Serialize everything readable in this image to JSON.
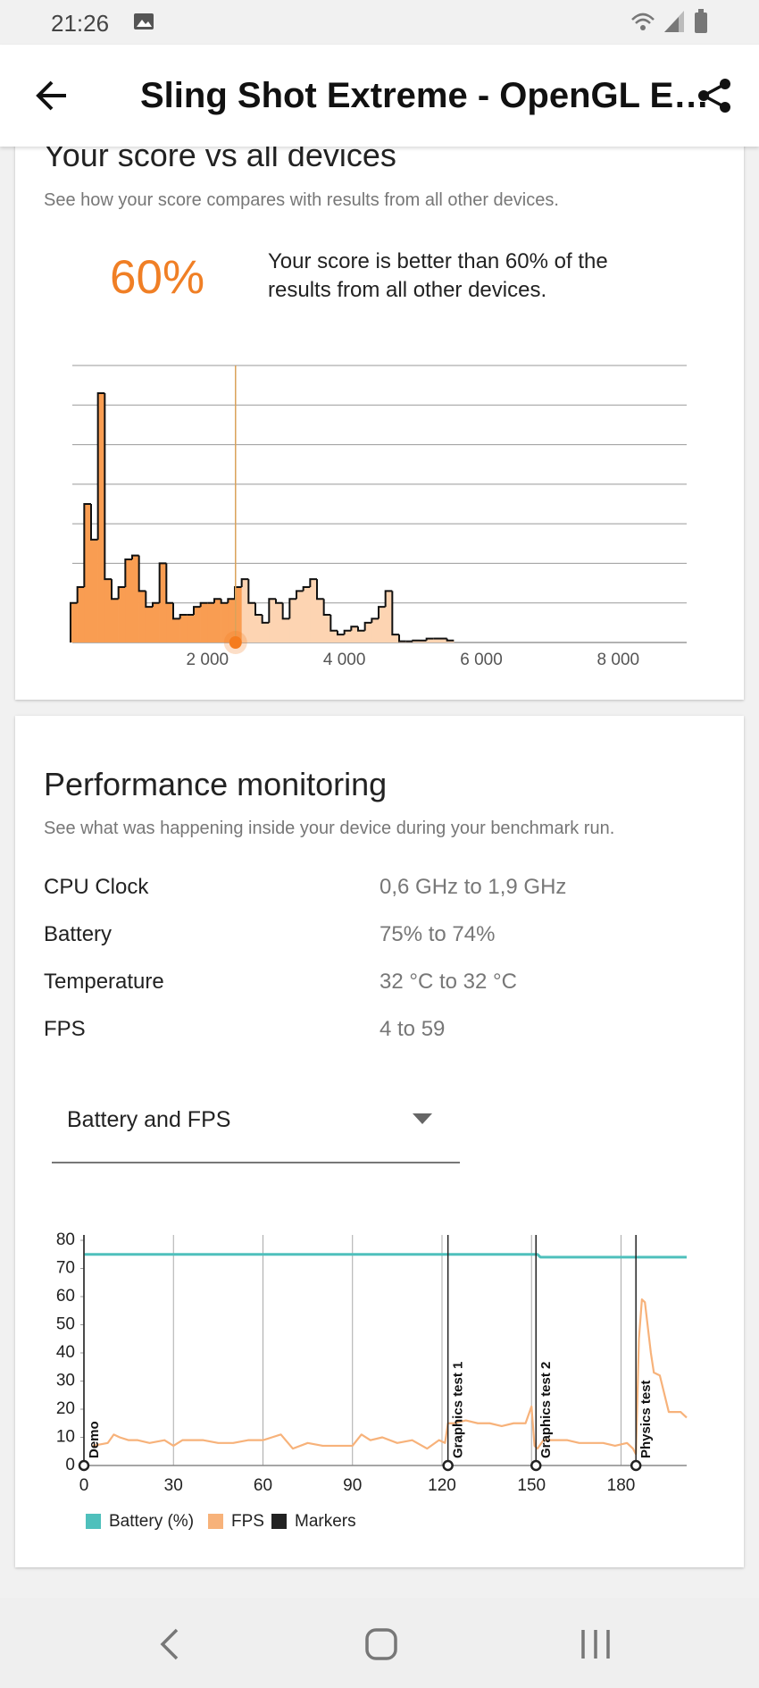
{
  "status_bar": {
    "time": "21:26"
  },
  "app_bar": {
    "title": "Sling Shot Extreme - OpenGL E…"
  },
  "score_card": {
    "heading": "Your score vs all devices",
    "subtitle": "See how your score compares with results from all other devices.",
    "percentile": "60%",
    "description": "Your score is better than 60% of the results from all other devices.",
    "histogram": {
      "type": "histogram",
      "bins": [
        0,
        100,
        200,
        300,
        400,
        500,
        600,
        700,
        800,
        900,
        1000,
        1100,
        1200,
        1300,
        1400,
        1500,
        1600,
        1700,
        1800,
        1900,
        2000,
        2100,
        2200,
        2300,
        2400,
        2500,
        2600,
        2700,
        2800,
        2900,
        3000,
        3100,
        3200,
        3300,
        3400,
        3500,
        3600,
        3700,
        3800,
        3900,
        4000,
        4100,
        4200,
        4300,
        4400,
        4500,
        4600,
        4700,
        4800,
        4900,
        5000,
        5100,
        5200,
        5300,
        5400,
        5500,
        5600
      ],
      "counts": [
        1.0,
        1.4,
        3.5,
        2.6,
        6.3,
        1.6,
        1.1,
        1.4,
        2.1,
        2.2,
        1.3,
        0.9,
        1.0,
        2.0,
        1.0,
        0.6,
        0.7,
        0.7,
        0.9,
        1.0,
        1.0,
        1.1,
        1.0,
        1.1,
        1.4,
        1.6,
        1.0,
        0.7,
        0.5,
        1.1,
        1.0,
        0.6,
        1.1,
        1.3,
        1.4,
        1.6,
        1.1,
        0.7,
        0.3,
        0.2,
        0.3,
        0.4,
        0.3,
        0.5,
        0.6,
        0.9,
        1.3,
        0.2,
        0.03,
        0.03,
        0.05,
        0.05,
        0.1,
        0.1,
        0.1,
        0.05
      ],
      "xlim": [
        0,
        9000
      ],
      "xticks": [
        {
          "value": 2000,
          "label": "2 000"
        },
        {
          "value": 4000,
          "label": "4 000"
        },
        {
          "value": 6000,
          "label": "6 000"
        },
        {
          "value": 8000,
          "label": "8 000"
        }
      ],
      "ylim": [
        0,
        7
      ],
      "grid_values": [
        0,
        1,
        2,
        3,
        4,
        5,
        6,
        7
      ],
      "your_score": 2410,
      "color_below": "#f99d52",
      "color_above": "#fdd4b2",
      "score_color": "#f57c1f"
    }
  },
  "performance_card": {
    "heading": "Performance monitoring",
    "subtitle": "See what was happening inside your device during your benchmark run.",
    "stats": [
      {
        "label": "CPU Clock",
        "value": "0,6 GHz to 1,9 GHz"
      },
      {
        "label": "Battery",
        "value": "75% to 74%"
      },
      {
        "label": "Temperature",
        "value": "32 °C to 32 °C"
      },
      {
        "label": "FPS",
        "value": "4 to 59"
      }
    ],
    "dropdown": "Battery and FPS",
    "chart": {
      "type": "line",
      "xlim": [
        0,
        202
      ],
      "ylim": [
        0,
        80
      ],
      "xticks": [
        0,
        30,
        60,
        90,
        120,
        150,
        180
      ],
      "yticks": [
        0,
        10,
        20,
        30,
        40,
        50,
        60,
        70,
        80
      ],
      "series": [
        {
          "name": "Battery (%)",
          "color": "#4fc0bc",
          "x": [
            0,
            152,
            153,
            202
          ],
          "values": [
            75,
            75,
            74,
            74
          ]
        },
        {
          "name": "FPS",
          "color": "#f7b27a",
          "x": [
            3,
            8,
            10,
            12,
            15,
            18,
            22,
            27,
            30,
            33,
            37,
            40,
            45,
            50,
            55,
            60,
            63,
            66,
            70,
            75,
            80,
            85,
            90,
            93,
            96,
            100,
            105,
            110,
            115,
            119,
            121,
            122,
            124,
            128,
            132,
            136,
            140,
            144,
            148,
            150,
            151,
            152,
            154,
            158,
            162,
            166,
            170,
            174,
            178,
            182,
            184,
            185,
            186,
            187,
            188,
            190,
            191,
            193,
            196,
            200,
            202
          ],
          "values": [
            7,
            8,
            11,
            10,
            9,
            9,
            8,
            9,
            7,
            9,
            9,
            9,
            8,
            8,
            9,
            9,
            10,
            11,
            6,
            8,
            7,
            7,
            7,
            11,
            9,
            10,
            8,
            9,
            6,
            9,
            8,
            15,
            15,
            16,
            15,
            15,
            14,
            15,
            15,
            21,
            7,
            6,
            9,
            9,
            9,
            8,
            8,
            8,
            7,
            8,
            6,
            4,
            45,
            59,
            58,
            40,
            33,
            32,
            19,
            19,
            17
          ]
        }
      ],
      "markers": {
        "name": "Markers",
        "color": "#222222",
        "items": [
          {
            "label": "Demo",
            "x": 0
          },
          {
            "label": "Graphics test 1",
            "x": 122
          },
          {
            "label": "Graphics test 2",
            "x": 151.5
          },
          {
            "label": "Physics test",
            "x": 185
          }
        ]
      }
    }
  }
}
